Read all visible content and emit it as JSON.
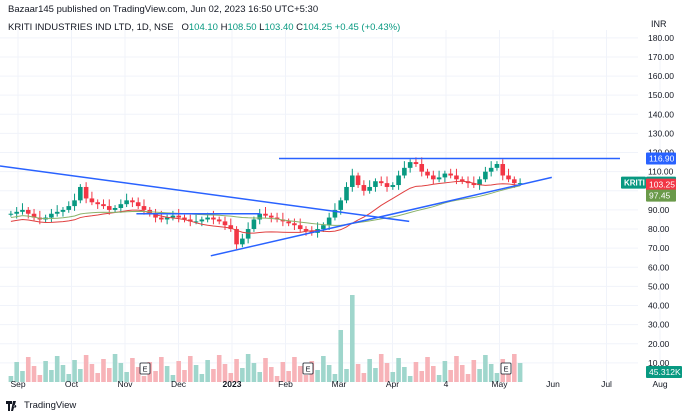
{
  "header": {
    "published": "Bazaar145 published on TradingView.com, Jun 02, 2023 16:50 UTC+5:30",
    "symbol_line": "KRITI INDUSTRIES IND LTD, 1D, NSE",
    "ohlc": {
      "o_label": "O",
      "o": "104.10",
      "h_label": "H",
      "h": "108.50",
      "l_label": "L",
      "l": "103.40",
      "c_label": "C",
      "c": "104.25",
      "change": "+0.45 (+0.43%)"
    },
    "currency": "INR"
  },
  "footer": {
    "brand": "TradingView"
  },
  "colors": {
    "up": "#089981",
    "down": "#f23645",
    "trendline": "#2962ff",
    "ma_red": "#e04040",
    "ma_green": "#8ab26a",
    "price_badge": "#089981"
  },
  "chart_data": {
    "type": "candlestick",
    "x_ticks": [
      "Sep",
      "Oct",
      "Nov",
      "Dec",
      "2023",
      "Feb",
      "Mar",
      "Apr",
      "4",
      "May",
      "Jun",
      "Jul",
      "Aug"
    ],
    "y_ticks": [
      "10.00",
      "20.00",
      "30.00",
      "40.00",
      "50.00",
      "60.00",
      "70.00",
      "80.00",
      "90.00",
      "100.00",
      "110.00",
      "120.00",
      "130.00",
      "140.00",
      "150.00",
      "160.00",
      "170.00",
      "180.00"
    ],
    "ylim": [
      0,
      182
    ],
    "price_labels": [
      {
        "name": "resistance",
        "value": "116.90",
        "color": "#2962ff",
        "y": 116.9
      },
      {
        "name": "last",
        "value": "104.25",
        "color": "#089981",
        "y": 104.25,
        "symbol": "KRITI"
      },
      {
        "name": "ma-red",
        "value": "103.25",
        "color": "#f23645",
        "y": 103.25
      },
      {
        "name": "ma-green",
        "value": "97.45",
        "color": "#6a9a4a",
        "y": 97.45
      }
    ],
    "volume_label": "45.312K",
    "events": [
      "E",
      "E",
      "E"
    ],
    "trendlines": [
      {
        "name": "falling-resistance",
        "from": [
          0,
          113
        ],
        "to": [
          0.66,
          84
        ]
      },
      {
        "name": "rising-support",
        "from": [
          0.34,
          66
        ],
        "to": [
          0.89,
          107
        ]
      },
      {
        "name": "horizontal-resistance",
        "from": [
          0.45,
          116.9
        ],
        "to": [
          1.0,
          116.9
        ]
      },
      {
        "name": "short-horizontal",
        "from": [
          0.22,
          88
        ],
        "to": [
          0.42,
          88
        ]
      }
    ],
    "series": [
      {
        "name": "",
        "values": [
          88,
          89,
          90,
          88,
          86,
          85,
          86,
          88,
          89,
          90,
          92,
          95,
          102,
          96,
          94,
          93,
          92,
          90,
          91,
          93,
          95,
          94,
          92,
          90,
          88,
          86,
          85,
          86,
          87,
          86,
          85,
          84,
          84,
          85,
          86,
          85,
          84,
          82,
          80,
          72,
          75,
          80,
          85,
          88,
          87,
          86,
          85,
          84,
          83,
          82,
          80,
          79,
          78,
          80,
          82,
          86,
          90,
          95,
          102,
          108,
          103,
          100,
          102,
          105,
          104,
          102,
          103,
          108,
          112,
          115,
          114,
          110,
          108,
          106,
          107,
          109,
          108,
          106,
          105,
          104,
          103,
          106,
          110,
          112,
          114,
          108,
          106,
          104,
          104
        ]
      }
    ]
  }
}
